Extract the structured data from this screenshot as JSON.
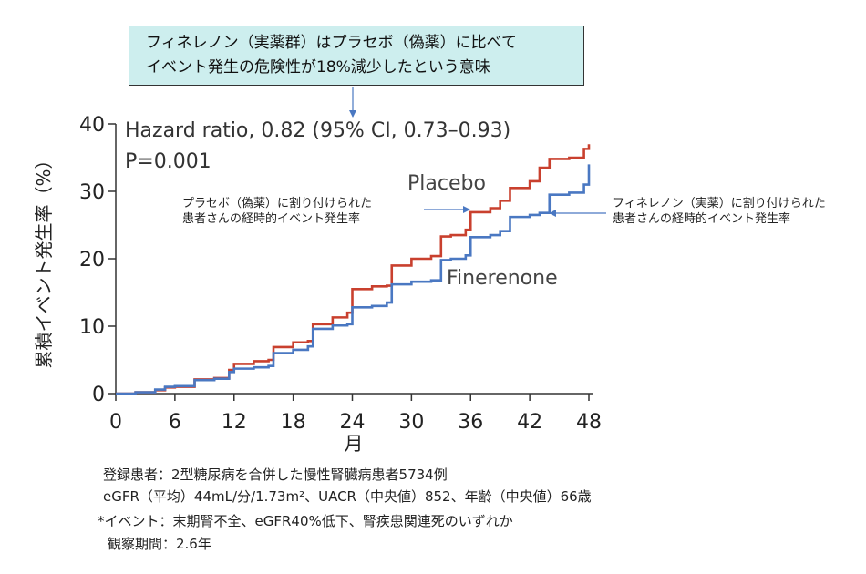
{
  "callout": {
    "line1": "フィネレノン（実薬群）はプラセボ（偽薬）に比べて",
    "line2": "イベント発生の危険性が18%減少したという意味"
  },
  "annotations": {
    "placebo_note": [
      "プラセボ（偽薬）に割り付けられた",
      "患者さんの経時的イベント発生率"
    ],
    "finerenone_note": [
      "フィネレノン（実薬）に割り付けられた",
      "患者さんの経時的イベント発生率"
    ]
  },
  "footnotes": {
    "line1": "登録患者：2型糖尿病を合併した慢性腎臓病患者5734例",
    "line2": "eGFR（平均）44mL/分/1.73m²、UACR（中央値）852、年齢（中央値）66歳",
    "line3": "*イベント：末期腎不全、eGFR40%低下、腎疾患関連死のいずれか",
    "line4": "観察期間：2.6年"
  },
  "chart_data": {
    "type": "line",
    "xlabel": "月",
    "ylabel": "累積イベント発生率（%）",
    "xlim": [
      0,
      48
    ],
    "ylim": [
      0,
      40
    ],
    "xticks": [
      0,
      6,
      12,
      18,
      24,
      30,
      36,
      42,
      48
    ],
    "yticks": [
      0,
      10,
      20,
      30,
      40
    ],
    "grid": false,
    "text_annotations": [
      "Hazard ratio, 0.82 (95% CI, 0.73–0.93)",
      "P=0.001"
    ],
    "series": [
      {
        "name": "Placebo",
        "color": "#c9402e",
        "step": true,
        "x": [
          0,
          2,
          4,
          5,
          6,
          8,
          10,
          11.5,
          12,
          14,
          15.5,
          16,
          18,
          19.5,
          20,
          22,
          23.5,
          24,
          26,
          27.5,
          28,
          30,
          32,
          33,
          34,
          35.5,
          36,
          38,
          39,
          40,
          42,
          43,
          44,
          46,
          47.5,
          48
        ],
        "y": [
          0,
          0.2,
          0.5,
          0.9,
          1.0,
          2.1,
          2.3,
          3.5,
          4.4,
          4.8,
          5.0,
          6.9,
          7.6,
          7.8,
          10.3,
          11.3,
          12.0,
          15.5,
          15.9,
          16.0,
          19.0,
          20.0,
          20.4,
          23.3,
          23.5,
          24.3,
          26.9,
          27.5,
          28.6,
          30.5,
          31.5,
          33.5,
          34.8,
          35.0,
          36.3,
          37.0
        ]
      },
      {
        "name": "Finerenone",
        "color": "#4a78c2",
        "step": true,
        "x": [
          0,
          2,
          4,
          5,
          6,
          8,
          10,
          11.5,
          12,
          14,
          15.5,
          16,
          18,
          19.5,
          20,
          22,
          23.5,
          24,
          26,
          27.5,
          28,
          30,
          32,
          33,
          34,
          35.5,
          36,
          38,
          39,
          40,
          42,
          43,
          44,
          46,
          47.5,
          48
        ],
        "y": [
          0,
          0.2,
          0.6,
          1.0,
          1.1,
          2.0,
          2.2,
          3.2,
          3.7,
          3.9,
          4.1,
          6.0,
          6.5,
          7.0,
          9.6,
          10.1,
          10.3,
          12.8,
          13.0,
          13.5,
          16.2,
          16.6,
          16.8,
          19.8,
          20.0,
          20.5,
          23.2,
          23.5,
          24.1,
          26.2,
          26.5,
          26.8,
          29.5,
          29.8,
          31.0,
          34.0
        ]
      }
    ]
  }
}
